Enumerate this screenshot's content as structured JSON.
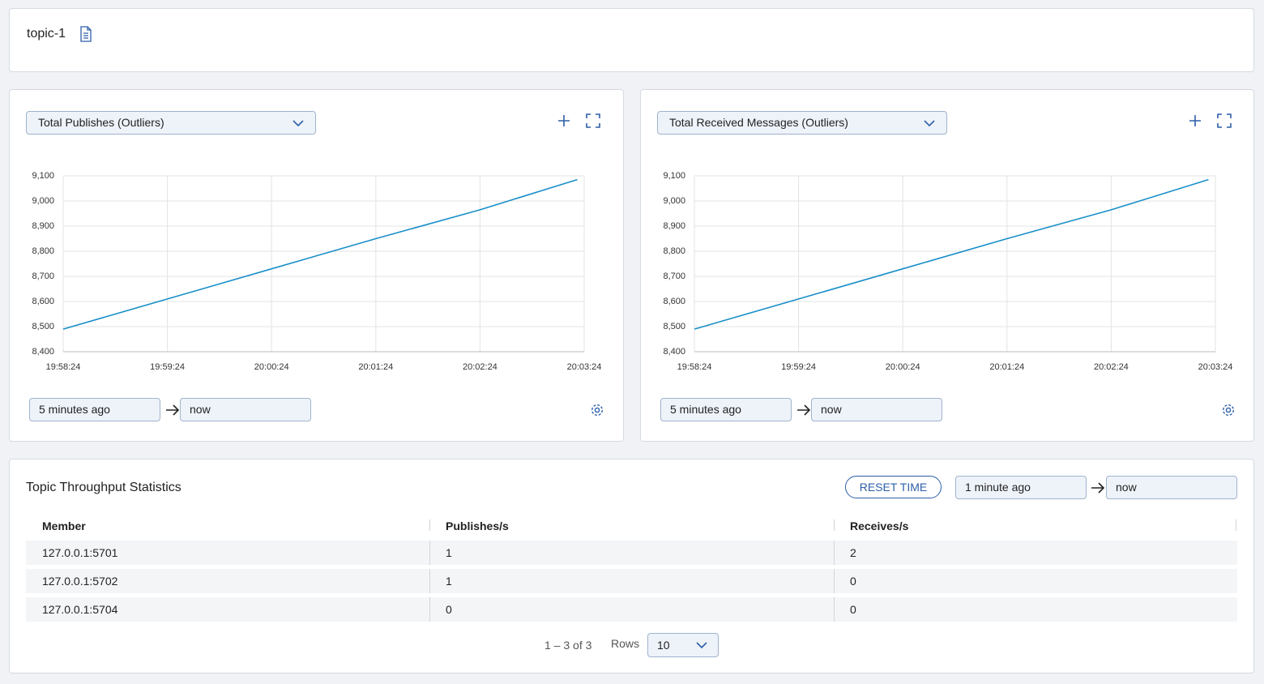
{
  "header": {
    "title": "topic-1"
  },
  "charts": [
    {
      "selector": "Total Publishes (Outliers)",
      "from": "5 minutes ago",
      "to": "now",
      "chart_data": {
        "type": "line",
        "x": [
          "19:58:24",
          "19:59:24",
          "20:00:24",
          "20:01:24",
          "20:02:24",
          "20:03:20"
        ],
        "values": [
          8490,
          8610,
          8730,
          8850,
          8965,
          9085
        ],
        "color": "#1a8fc9",
        "xlim": [
          "19:58:24",
          "20:03:24"
        ],
        "xticks": [
          "19:58:24",
          "19:59:24",
          "20:00:24",
          "20:01:24",
          "20:02:24",
          "20:03:24"
        ],
        "ylim": [
          8400,
          9100
        ],
        "yticks": [
          {
            "value": 8400,
            "label": "8,400"
          },
          {
            "value": 8500,
            "label": "8,500"
          },
          {
            "value": 8600,
            "label": "8,600"
          },
          {
            "value": 8700,
            "label": "8,700"
          },
          {
            "value": 8800,
            "label": "8,800"
          },
          {
            "value": 8900,
            "label": "8,900"
          },
          {
            "value": 9000,
            "label": "9,000"
          },
          {
            "value": 9100,
            "label": "9,100"
          }
        ],
        "grid": true
      }
    },
    {
      "selector": "Total Received Messages (Outliers)",
      "from": "5 minutes ago",
      "to": "now",
      "chart_data": {
        "type": "line",
        "x": [
          "19:58:24",
          "19:59:24",
          "20:00:24",
          "20:01:24",
          "20:02:24",
          "20:03:20"
        ],
        "values": [
          8490,
          8610,
          8730,
          8850,
          8965,
          9085
        ],
        "color": "#1a8fc9",
        "xlim": [
          "19:58:24",
          "20:03:24"
        ],
        "xticks": [
          "19:58:24",
          "19:59:24",
          "20:00:24",
          "20:01:24",
          "20:02:24",
          "20:03:24"
        ],
        "ylim": [
          8400,
          9100
        ],
        "yticks": [
          {
            "value": 8400,
            "label": "8,400"
          },
          {
            "value": 8500,
            "label": "8,500"
          },
          {
            "value": 8600,
            "label": "8,600"
          },
          {
            "value": 8700,
            "label": "8,700"
          },
          {
            "value": 8800,
            "label": "8,800"
          },
          {
            "value": 8900,
            "label": "8,900"
          },
          {
            "value": 9000,
            "label": "9,000"
          },
          {
            "value": 9100,
            "label": "9,100"
          }
        ],
        "grid": true
      }
    }
  ],
  "stats": {
    "title": "Topic Throughput Statistics",
    "reset": "RESET TIME",
    "from": "1 minute ago",
    "to": "now",
    "columns": [
      "Member",
      "Publishes/s",
      "Receives/s"
    ],
    "rows": [
      [
        "127.0.0.1:5701",
        1,
        2
      ],
      [
        "127.0.0.1:5702",
        1,
        0
      ],
      [
        "127.0.0.1:5704",
        0,
        0
      ]
    ],
    "pagination": {
      "range": "1 – 3 of 3",
      "rows_label": "Rows",
      "rows_value": 10
    }
  }
}
